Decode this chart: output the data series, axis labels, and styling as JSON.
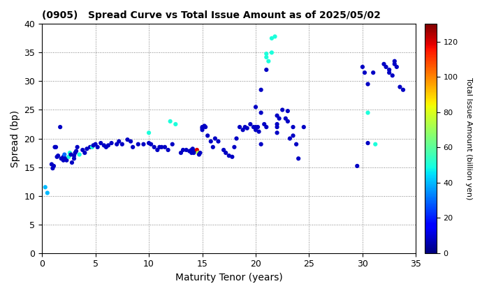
{
  "title": "(0905)   Spread Curve vs Total Issue Amount as of 2025/05/02",
  "xlabel": "Maturity Tenor (years)",
  "ylabel": "Spread (bp)",
  "colorbar_label": "Total Issue Amount (billion yen)",
  "xlim": [
    0,
    35
  ],
  "ylim": [
    0,
    40
  ],
  "xticks": [
    0,
    5,
    10,
    15,
    20,
    25,
    30,
    35
  ],
  "yticks": [
    0,
    5,
    10,
    15,
    20,
    25,
    30,
    35,
    40
  ],
  "colorbar_ticks": [
    0,
    20,
    40,
    60,
    80,
    100,
    120
  ],
  "cmap": "jet",
  "vmin": 0,
  "vmax": 130,
  "marker_size": 20,
  "scatter_points": [
    [
      0.3,
      11.5,
      40
    ],
    [
      0.5,
      10.5,
      40
    ],
    [
      0.9,
      15.5,
      8
    ],
    [
      1.0,
      14.8,
      8
    ],
    [
      1.1,
      15.2,
      8
    ],
    [
      1.2,
      18.5,
      8
    ],
    [
      1.3,
      18.5,
      8
    ],
    [
      1.4,
      16.8,
      8
    ],
    [
      1.5,
      17.0,
      8
    ],
    [
      1.7,
      22.0,
      8
    ],
    [
      1.8,
      16.5,
      8
    ],
    [
      2.0,
      16.2,
      8
    ],
    [
      2.0,
      16.8,
      8
    ],
    [
      2.1,
      17.2,
      30
    ],
    [
      2.2,
      16.5,
      8
    ],
    [
      2.3,
      16.2,
      8
    ],
    [
      2.5,
      16.8,
      50
    ],
    [
      2.6,
      17.5,
      50
    ],
    [
      2.7,
      17.2,
      8
    ],
    [
      2.8,
      15.8,
      8
    ],
    [
      3.0,
      16.5,
      8
    ],
    [
      3.0,
      17.0,
      8
    ],
    [
      3.1,
      17.5,
      8
    ],
    [
      3.2,
      17.8,
      8
    ],
    [
      3.3,
      18.5,
      8
    ],
    [
      3.5,
      17.2,
      50
    ],
    [
      3.8,
      18.0,
      8
    ],
    [
      4.0,
      17.5,
      8
    ],
    [
      4.2,
      18.2,
      8
    ],
    [
      4.5,
      18.5,
      8
    ],
    [
      4.7,
      18.5,
      50
    ],
    [
      4.8,
      18.8,
      8
    ],
    [
      5.0,
      19.0,
      8
    ],
    [
      5.2,
      18.5,
      8
    ],
    [
      5.5,
      19.2,
      8
    ],
    [
      5.8,
      18.8,
      8
    ],
    [
      6.0,
      18.5,
      8
    ],
    [
      6.2,
      18.8,
      8
    ],
    [
      6.5,
      19.2,
      8
    ],
    [
      7.0,
      19.0,
      8
    ],
    [
      7.2,
      19.5,
      8
    ],
    [
      7.5,
      19.0,
      8
    ],
    [
      8.0,
      19.8,
      8
    ],
    [
      8.3,
      19.5,
      8
    ],
    [
      8.5,
      18.5,
      8
    ],
    [
      9.0,
      19.0,
      8
    ],
    [
      9.5,
      19.0,
      8
    ],
    [
      10.0,
      19.2,
      8
    ],
    [
      10.0,
      21.0,
      50
    ],
    [
      10.2,
      19.0,
      8
    ],
    [
      10.5,
      18.5,
      8
    ],
    [
      10.8,
      18.0,
      8
    ],
    [
      11.0,
      18.5,
      8
    ],
    [
      11.2,
      18.5,
      8
    ],
    [
      11.5,
      18.5,
      8
    ],
    [
      11.8,
      18.0,
      8
    ],
    [
      12.0,
      23.0,
      50
    ],
    [
      12.2,
      19.0,
      8
    ],
    [
      12.5,
      22.5,
      50
    ],
    [
      13.0,
      17.5,
      8
    ],
    [
      13.2,
      18.0,
      8
    ],
    [
      13.5,
      18.0,
      8
    ],
    [
      13.8,
      17.8,
      8
    ],
    [
      14.0,
      17.5,
      8
    ],
    [
      14.0,
      18.0,
      8
    ],
    [
      14.1,
      18.2,
      8
    ],
    [
      14.2,
      17.5,
      8
    ],
    [
      14.3,
      17.8,
      8
    ],
    [
      14.5,
      18.0,
      120
    ],
    [
      14.6,
      17.5,
      75
    ],
    [
      14.7,
      17.2,
      8
    ],
    [
      14.8,
      17.5,
      8
    ],
    [
      15.0,
      21.8,
      8
    ],
    [
      15.0,
      21.5,
      8
    ],
    [
      15.0,
      22.0,
      8
    ],
    [
      15.2,
      22.2,
      8
    ],
    [
      15.3,
      22.0,
      8
    ],
    [
      15.5,
      20.5,
      8
    ],
    [
      15.8,
      19.5,
      8
    ],
    [
      16.0,
      18.5,
      8
    ],
    [
      16.2,
      20.0,
      8
    ],
    [
      16.5,
      19.5,
      8
    ],
    [
      17.0,
      18.0,
      8
    ],
    [
      17.2,
      17.5,
      8
    ],
    [
      17.5,
      17.0,
      8
    ],
    [
      17.8,
      16.8,
      8
    ],
    [
      18.0,
      18.5,
      8
    ],
    [
      18.2,
      20.0,
      8
    ],
    [
      18.5,
      22.0,
      8
    ],
    [
      18.8,
      21.5,
      8
    ],
    [
      19.0,
      22.0,
      8
    ],
    [
      19.2,
      21.8,
      8
    ],
    [
      19.5,
      22.5,
      8
    ],
    [
      19.8,
      22.0,
      8
    ],
    [
      20.0,
      22.0,
      8
    ],
    [
      20.0,
      21.5,
      8
    ],
    [
      20.0,
      25.5,
      8
    ],
    [
      20.2,
      22.0,
      8
    ],
    [
      20.3,
      21.2,
      8
    ],
    [
      20.5,
      24.5,
      8
    ],
    [
      20.5,
      19.0,
      8
    ],
    [
      20.5,
      28.5,
      8
    ],
    [
      20.8,
      22.5,
      8
    ],
    [
      21.0,
      22.0,
      8
    ],
    [
      21.0,
      32.0,
      8
    ],
    [
      21.0,
      34.2,
      50
    ],
    [
      21.0,
      34.8,
      50
    ],
    [
      21.2,
      33.5,
      50
    ],
    [
      21.5,
      35.0,
      50
    ],
    [
      21.5,
      37.5,
      50
    ],
    [
      21.8,
      37.8,
      50
    ],
    [
      22.0,
      22.0,
      8
    ],
    [
      22.0,
      24.0,
      8
    ],
    [
      22.0,
      22.5,
      8
    ],
    [
      22.0,
      21.0,
      8
    ],
    [
      22.2,
      23.5,
      8
    ],
    [
      22.5,
      25.0,
      8
    ],
    [
      22.8,
      23.5,
      8
    ],
    [
      23.0,
      24.8,
      8
    ],
    [
      23.0,
      23.0,
      8
    ],
    [
      23.2,
      20.0,
      8
    ],
    [
      23.5,
      22.0,
      8
    ],
    [
      23.5,
      20.5,
      8
    ],
    [
      23.8,
      19.0,
      8
    ],
    [
      24.0,
      16.5,
      8
    ],
    [
      24.5,
      22.0,
      8
    ],
    [
      29.5,
      15.2,
      8
    ],
    [
      30.0,
      32.5,
      8
    ],
    [
      30.2,
      31.5,
      8
    ],
    [
      30.5,
      24.5,
      50
    ],
    [
      30.5,
      19.2,
      8
    ],
    [
      30.5,
      29.5,
      8
    ],
    [
      31.0,
      31.5,
      8
    ],
    [
      31.2,
      19.0,
      50
    ],
    [
      32.0,
      33.0,
      8
    ],
    [
      32.2,
      32.5,
      8
    ],
    [
      32.5,
      32.0,
      8
    ],
    [
      32.5,
      31.5,
      8
    ],
    [
      32.8,
      31.0,
      8
    ],
    [
      33.0,
      33.5,
      8
    ],
    [
      33.0,
      33.0,
      8
    ],
    [
      33.2,
      32.5,
      8
    ],
    [
      33.5,
      29.0,
      8
    ],
    [
      33.8,
      28.5,
      8
    ]
  ]
}
